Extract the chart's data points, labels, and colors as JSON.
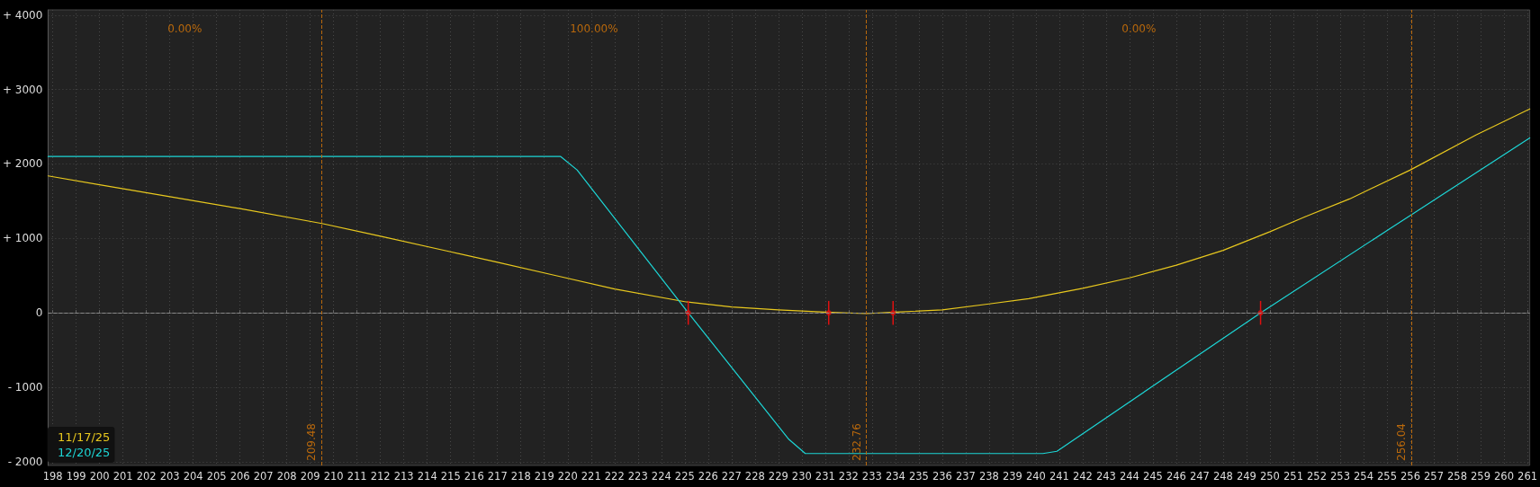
{
  "chart_data": {
    "type": "line",
    "xlim": [
      197.8,
      261.1
    ],
    "ylim": [
      -2050,
      4070
    ],
    "xticks": [
      198,
      199,
      200,
      201,
      202,
      203,
      204,
      205,
      206,
      207,
      208,
      209,
      210,
      211,
      212,
      213,
      214,
      215,
      216,
      217,
      218,
      219,
      220,
      221,
      222,
      223,
      224,
      225,
      226,
      227,
      228,
      229,
      230,
      231,
      232,
      233,
      234,
      235,
      236,
      237,
      238,
      239,
      240,
      241,
      242,
      243,
      244,
      245,
      246,
      247,
      248,
      249,
      250,
      251,
      252,
      253,
      254,
      255,
      256,
      257,
      258,
      259,
      260,
      261
    ],
    "yticks": [
      {
        "value": -2000,
        "label": "- 2000"
      },
      {
        "value": -1000,
        "label": "- 1000"
      },
      0,
      {
        "value": 1000,
        "label": "+ 1000"
      },
      {
        "value": 2000,
        "label": "+ 2000"
      },
      {
        "value": 3000,
        "label": "+ 3000"
      },
      {
        "value": 4000,
        "label": "+ 4000"
      }
    ],
    "grid": true,
    "legend": "bottom left",
    "marker": "none",
    "line_style": "solid",
    "series": [
      {
        "name": "11/17/25",
        "color": "#e8c81e",
        "x": [
          197.8,
          200,
          203,
          206,
          209.5,
          212,
          215,
          217,
          219.5,
          222,
          225,
          227,
          229,
          231,
          232.76,
          234,
          236,
          238,
          239.7,
          242,
          244,
          246,
          248,
          250,
          251.5,
          253.4,
          256,
          258.8,
          261.1
        ],
        "values": [
          1840,
          1720,
          1560,
          1400,
          1200,
          1030,
          820,
          680,
          500,
          320,
          150,
          80,
          40,
          10,
          -10,
          10,
          40,
          120,
          190,
          330,
          470,
          640,
          840,
          1090,
          1290,
          1530,
          1920,
          2390,
          2740
        ]
      },
      {
        "name": "12/20/25",
        "color": "#1dd6d6",
        "x": [
          197.8,
          219.7,
          220.4,
          225.15,
          229.45,
          230.15,
          240.3,
          240.9,
          249.6,
          256,
          261.1
        ],
        "values": [
          2100,
          2100,
          1920,
          0,
          -1700,
          -1890,
          -1890,
          -1860,
          0,
          1310,
          2350
        ]
      },
      {
        "type": "scatter",
        "color": "#e01010",
        "marker": "circle",
        "x": [
          225.15,
          231.15,
          233.9,
          249.6
        ],
        "values": [
          0,
          0,
          0,
          0
        ],
        "errors": [
          160,
          160,
          160,
          160
        ]
      }
    ],
    "ref_lines": [
      {
        "axis": "y",
        "value": 0,
        "color": "#8a8a8a",
        "line_style": "dashed"
      },
      {
        "axis": "x",
        "value": 209.48,
        "label": "209.48",
        "color": "#b8680c",
        "line_style": "dashed"
      },
      {
        "axis": "x",
        "value": 232.76,
        "label": "232.76",
        "color": "#b8680c",
        "line_style": "dashed"
      },
      {
        "axis": "x",
        "value": 256.04,
        "label": "256.04",
        "color": "#b8680c",
        "line_style": "dashed"
      }
    ],
    "annotations": [
      "0.00%",
      "100.00%",
      "0.00%"
    ]
  }
}
